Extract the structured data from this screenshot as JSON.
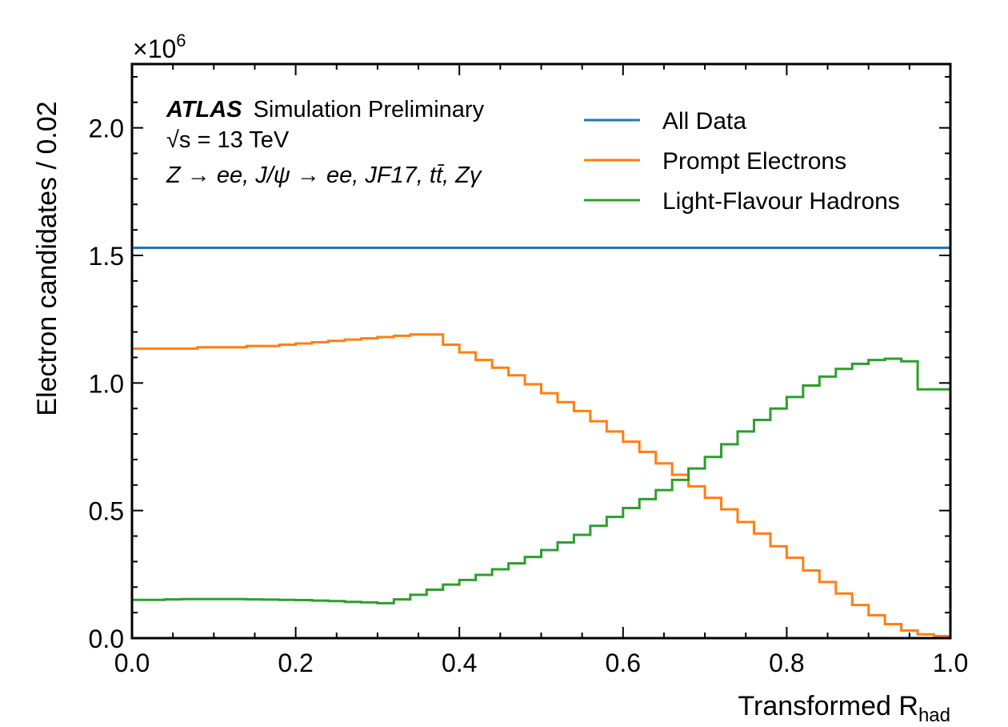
{
  "chart_data": {
    "type": "histogram-step",
    "annotations": {
      "experiment": "ATLAS",
      "status": "Simulation Preliminary",
      "energy": "√s = 13 TeV",
      "samples": "Z → ee, J/ψ → ee, JF17, tt̄, Zγ"
    },
    "xlabel": "Transformed R",
    "xlabel_sub": "had",
    "ylabel": "Electron candidates / 0.02",
    "y_multiplier": "×10",
    "y_multiplier_exp": "6",
    "xlim": [
      0.0,
      1.0
    ],
    "ylim": [
      0.0,
      2.25
    ],
    "x_ticks": [
      "0.0",
      "0.2",
      "0.4",
      "0.6",
      "0.8",
      "1.0"
    ],
    "y_ticks": [
      "0.0",
      "0.5",
      "1.0",
      "1.5",
      "2.0"
    ],
    "bin_width": 0.02,
    "legend_position": "top-right",
    "series": [
      {
        "name": "All Data",
        "color": "#1f77b4",
        "values": [
          1.53,
          1.53,
          1.53,
          1.53,
          1.53,
          1.53,
          1.53,
          1.53,
          1.53,
          1.53,
          1.53,
          1.53,
          1.53,
          1.53,
          1.53,
          1.53,
          1.53,
          1.53,
          1.53,
          1.53,
          1.53,
          1.53,
          1.53,
          1.53,
          1.53,
          1.53,
          1.53,
          1.53,
          1.53,
          1.53,
          1.53,
          1.53,
          1.53,
          1.53,
          1.53,
          1.53,
          1.53,
          1.53,
          1.53,
          1.53,
          1.53,
          1.53,
          1.53,
          1.53,
          1.53,
          1.53,
          1.53,
          1.53,
          1.53,
          1.53
        ]
      },
      {
        "name": "Prompt Electrons",
        "color": "#ff7f0e",
        "values": [
          1.135,
          1.135,
          1.135,
          1.135,
          1.14,
          1.14,
          1.14,
          1.145,
          1.145,
          1.15,
          1.155,
          1.16,
          1.165,
          1.17,
          1.175,
          1.18,
          1.185,
          1.19,
          1.19,
          1.15,
          1.12,
          1.09,
          1.06,
          1.03,
          0.995,
          0.96,
          0.925,
          0.89,
          0.85,
          0.81,
          0.77,
          0.73,
          0.685,
          0.64,
          0.595,
          0.55,
          0.505,
          0.455,
          0.41,
          0.36,
          0.315,
          0.265,
          0.22,
          0.175,
          0.13,
          0.09,
          0.055,
          0.03,
          0.015,
          0.008
        ]
      },
      {
        "name": "Light-Flavour Hadrons",
        "color": "#2ca02c",
        "values": [
          0.15,
          0.15,
          0.152,
          0.153,
          0.153,
          0.153,
          0.153,
          0.152,
          0.151,
          0.15,
          0.149,
          0.147,
          0.145,
          0.142,
          0.14,
          0.137,
          0.152,
          0.17,
          0.19,
          0.21,
          0.228,
          0.248,
          0.27,
          0.293,
          0.318,
          0.345,
          0.375,
          0.405,
          0.44,
          0.475,
          0.51,
          0.545,
          0.58,
          0.62,
          0.665,
          0.71,
          0.76,
          0.81,
          0.855,
          0.9,
          0.945,
          0.99,
          1.025,
          1.055,
          1.075,
          1.09,
          1.095,
          1.085,
          0.975,
          0.975
        ]
      }
    ]
  }
}
